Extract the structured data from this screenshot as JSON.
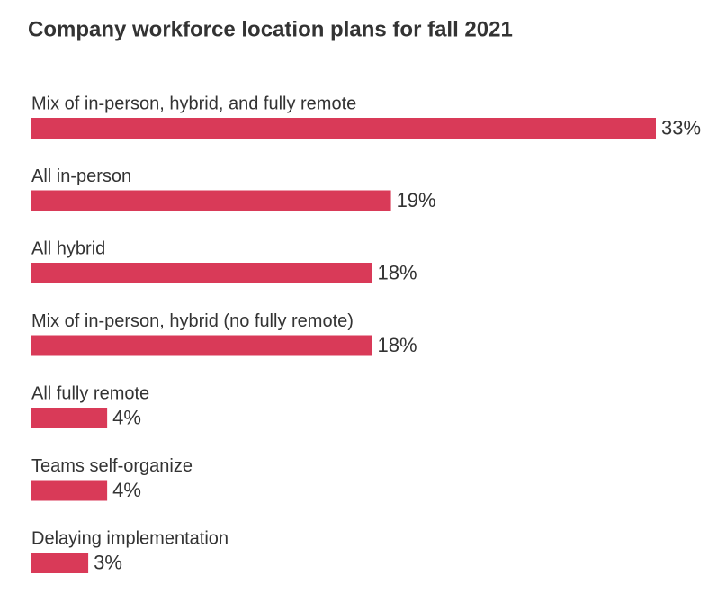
{
  "chart_data": {
    "type": "bar",
    "orientation": "horizontal",
    "title": "Company workforce location plans for fall 2021",
    "categories": [
      "Mix of in-person, hybrid, and fully remote",
      "All in-person",
      "All hybrid",
      "Mix of in-person, hybrid (no fully remote)",
      "All fully remote",
      "Teams self-organize",
      "Delaying implementation"
    ],
    "values": [
      33,
      19,
      18,
      18,
      4,
      4,
      3
    ],
    "value_labels": [
      "33%",
      "19%",
      "18%",
      "18%",
      "4%",
      "4%",
      "3%"
    ],
    "color": "#d93a58"
  }
}
